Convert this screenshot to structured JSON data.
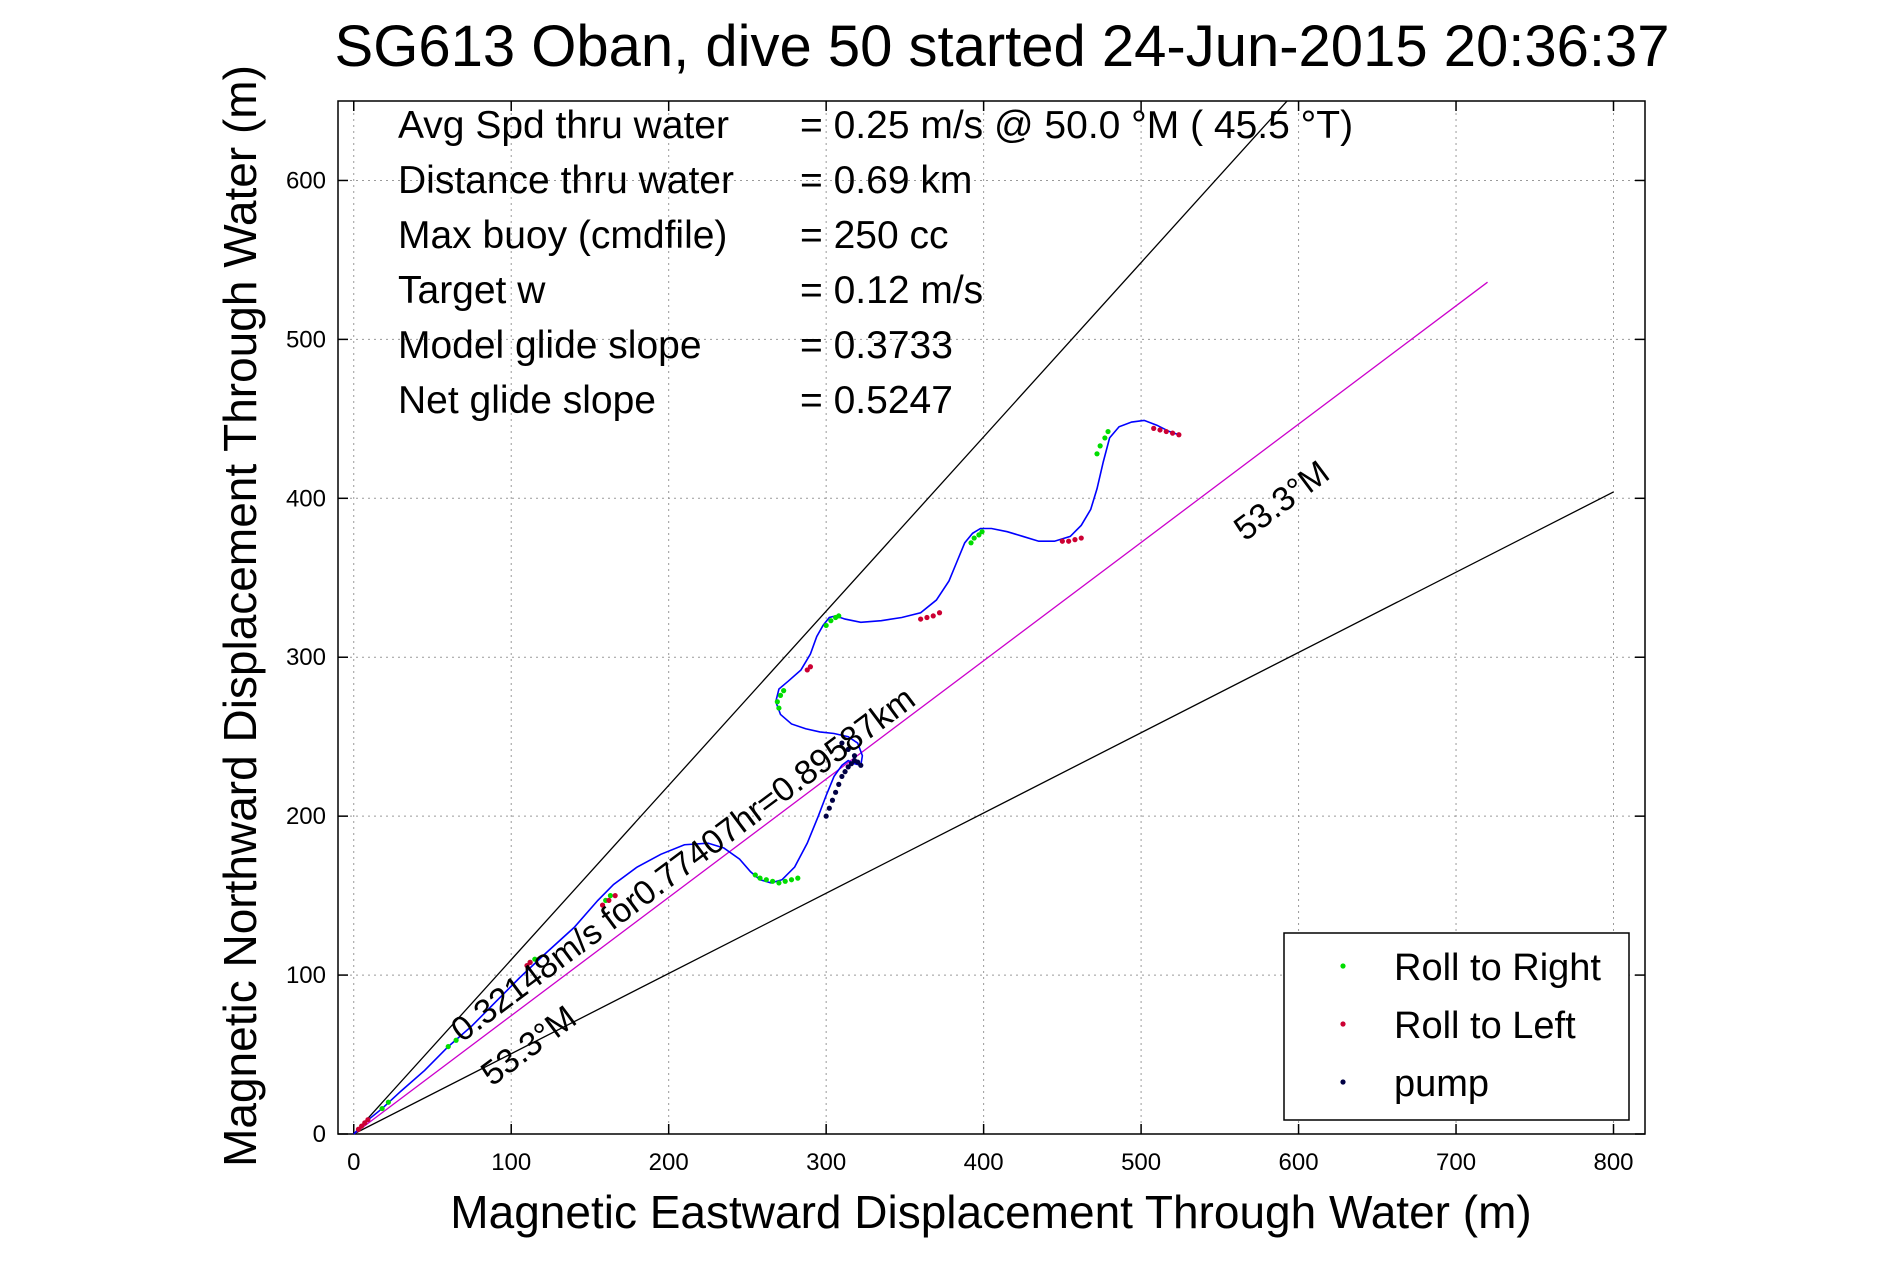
{
  "chart_data": {
    "type": "scatter",
    "title": "SG613 Oban, dive 50 started 24-Jun-2015 20:36:37",
    "xlabel": "Magnetic Eastward Displacement Through Water (m)",
    "ylabel": "Magnetic Northward Displacement Through Water (m)",
    "xlim": [
      -10,
      820
    ],
    "ylim": [
      0,
      650
    ],
    "x_ticks": [
      0,
      100,
      200,
      300,
      400,
      500,
      600,
      700,
      800
    ],
    "y_ticks": [
      0,
      100,
      200,
      300,
      400,
      500,
      600
    ],
    "grid": true,
    "legend_position": "bottom-right",
    "stats": [
      {
        "label": "Avg Spd thru water",
        "value": "=  0.25 m/s @  50.0 °M ( 45.5 °T)"
      },
      {
        "label": "Distance thru water",
        "value": "=  0.69 km"
      },
      {
        "label": "Max buoy (cmdfile)",
        "value": "= 250 cc"
      },
      {
        "label": "Target w",
        "value": "= 0.12 m/s"
      },
      {
        "label": "Model glide slope",
        "value": "= 0.3733"
      },
      {
        "label": "Net glide slope",
        "value": "= 0.5247"
      }
    ],
    "annotations": {
      "heading_label_upper": "53.3°M",
      "heading_label_lower": "53.3°M",
      "current_label": "0.32148m/s for0.77407hr=0.89587km"
    },
    "reference_lines": [
      {
        "name": "upper-bound",
        "x": [
          0,
          600
        ],
        "y": [
          0,
          658
        ],
        "color": "#000000"
      },
      {
        "name": "lower-bound",
        "x": [
          0,
          800
        ],
        "y": [
          0,
          404
        ],
        "color": "#000000"
      },
      {
        "name": "heading-line",
        "x": [
          0,
          720
        ],
        "y": [
          0,
          536
        ],
        "color": "#cc00cc"
      }
    ],
    "track": {
      "color": "#0000ff",
      "x": [
        0,
        8,
        18,
        30,
        45,
        60,
        75,
        90,
        105,
        120,
        140,
        155,
        165,
        180,
        195,
        210,
        225,
        235,
        245,
        252,
        258,
        265,
        272,
        280,
        288,
        295,
        300,
        305,
        310,
        314,
        318,
        322,
        323,
        320,
        314,
        305,
        296,
        287,
        278,
        271,
        268,
        270,
        276,
        284,
        290,
        294,
        298,
        302,
        306,
        312,
        322,
        335,
        348,
        360,
        370,
        378,
        383,
        388,
        393,
        398,
        405,
        415,
        425,
        435,
        445,
        455,
        462,
        468,
        472,
        476,
        480,
        486,
        494,
        502,
        510,
        518,
        524
      ],
      "y": [
        0,
        8,
        16,
        27,
        40,
        55,
        68,
        83,
        98,
        112,
        130,
        147,
        157,
        168,
        176,
        182,
        183,
        180,
        173,
        165,
        160,
        158,
        160,
        168,
        183,
        200,
        213,
        225,
        232,
        235,
        233,
        232,
        238,
        246,
        250,
        252,
        253,
        255,
        258,
        264,
        272,
        280,
        285,
        292,
        302,
        313,
        320,
        325,
        326,
        324,
        322,
        323,
        325,
        328,
        336,
        348,
        360,
        372,
        378,
        381,
        381,
        379,
        376,
        373,
        373,
        376,
        383,
        393,
        406,
        423,
        438,
        445,
        448,
        449,
        446,
        442,
        440
      ]
    },
    "series": [
      {
        "name": "Roll to Right",
        "color": "#00dd00",
        "x": [
          18,
          22,
          60,
          65,
          112,
          115,
          160,
          163,
          255,
          258,
          262,
          266,
          270,
          274,
          278,
          282,
          270,
          269,
          271,
          273,
          300,
          303,
          306,
          308,
          392,
          394,
          397,
          399,
          472,
          474,
          477,
          479
        ],
        "y": [
          16,
          20,
          55,
          59,
          108,
          110,
          147,
          150,
          163,
          161,
          160,
          159,
          158,
          159,
          160,
          161,
          268,
          272,
          276,
          279,
          320,
          323,
          325,
          326,
          372,
          375,
          377,
          379,
          428,
          433,
          438,
          442
        ]
      },
      {
        "name": "Roll to Left",
        "color": "#cc0033",
        "x": [
          3,
          5,
          7,
          9,
          110,
          112,
          158,
          162,
          166,
          288,
          290,
          360,
          364,
          368,
          372,
          450,
          454,
          458,
          462,
          508,
          512,
          516,
          520,
          524
        ],
        "y": [
          3,
          5,
          7,
          9,
          106,
          108,
          144,
          147,
          150,
          292,
          294,
          324,
          325,
          326,
          328,
          373,
          373,
          374,
          375,
          444,
          443,
          442,
          441,
          440
        ]
      },
      {
        "name": "pump",
        "color": "#000044",
        "x": [
          300,
          302,
          304,
          306,
          308,
          310,
          312,
          314,
          316,
          318,
          320,
          322,
          318,
          314,
          310
        ],
        "y": [
          200,
          205,
          210,
          215,
          220,
          225,
          228,
          231,
          233,
          235,
          234,
          232,
          238,
          242,
          246
        ]
      }
    ]
  }
}
